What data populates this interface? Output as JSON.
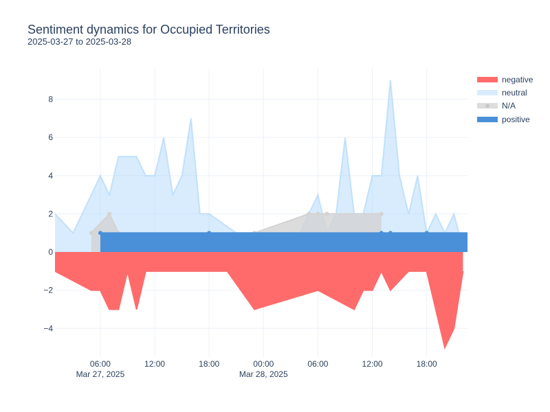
{
  "chart_data": {
    "type": "area",
    "title": "Sentiment dynamics for Occupied Territories",
    "subtitle": "2025-03-27 to 2025-03-28",
    "xlabel": "",
    "ylabel": "",
    "ylim": [
      -5.5,
      9.6
    ],
    "grid": true,
    "legend_position": "right",
    "x_tick_labels": [
      {
        "hour": 6,
        "label": "06:00",
        "date_label": "Mar 27, 2025"
      },
      {
        "hour": 12,
        "label": "12:00",
        "date_label": ""
      },
      {
        "hour": 18,
        "label": "18:00",
        "date_label": ""
      },
      {
        "hour": 24,
        "label": "00:00",
        "date_label": "Mar 28, 2025"
      },
      {
        "hour": 30,
        "label": "06:00",
        "date_label": ""
      },
      {
        "hour": 36,
        "label": "12:00",
        "date_label": ""
      },
      {
        "hour": 42,
        "label": "18:00",
        "date_label": ""
      }
    ],
    "y_ticks": [
      -4,
      -2,
      0,
      2,
      4,
      6,
      8
    ],
    "y_tick_labels": [
      "−4",
      "−2",
      "0",
      "2",
      "4",
      "6",
      "8"
    ],
    "x_range_hours": [
      1,
      46.5
    ],
    "x_unit_note": "x values are hours counted from 2025-03-27 00:00",
    "series": [
      {
        "name": "negative",
        "color": "#ff6b6b",
        "fill_opacity": 1,
        "markers": false,
        "points": [
          [
            1,
            -1
          ],
          [
            5,
            -2
          ],
          [
            6,
            -2
          ],
          [
            7,
            -3
          ],
          [
            8,
            -3
          ],
          [
            9,
            -1
          ],
          [
            10,
            -3
          ],
          [
            11,
            -1
          ],
          [
            12,
            -1
          ],
          [
            13,
            -1
          ],
          [
            14,
            -1
          ],
          [
            15,
            -1
          ],
          [
            16,
            -1
          ],
          [
            17,
            -1
          ],
          [
            18,
            -1
          ],
          [
            19,
            -1
          ],
          [
            20,
            -1
          ],
          [
            23,
            -3
          ],
          [
            30,
            -2
          ],
          [
            34,
            -3
          ],
          [
            35,
            -2
          ],
          [
            36,
            -2
          ],
          [
            37,
            -1
          ],
          [
            38,
            -2
          ],
          [
            40,
            -1
          ],
          [
            41,
            -1
          ],
          [
            42,
            -1
          ],
          [
            44,
            -5
          ],
          [
            45,
            -4
          ],
          [
            46,
            -1
          ]
        ]
      },
      {
        "name": "neutral",
        "color": "#a9d4fb",
        "fill_opacity": 0.45,
        "markers": false,
        "points": [
          [
            1,
            2
          ],
          [
            3,
            1
          ],
          [
            6,
            4
          ],
          [
            7,
            3
          ],
          [
            8,
            5
          ],
          [
            9,
            5
          ],
          [
            10,
            5
          ],
          [
            11,
            4
          ],
          [
            12,
            4
          ],
          [
            13,
            6
          ],
          [
            14,
            3
          ],
          [
            15,
            4
          ],
          [
            16,
            7
          ],
          [
            17,
            2
          ],
          [
            18,
            2
          ],
          [
            21,
            1
          ],
          [
            23,
            0.5
          ],
          [
            28,
            1
          ],
          [
            29,
            2
          ],
          [
            30,
            3
          ],
          [
            31,
            1
          ],
          [
            32,
            2
          ],
          [
            33,
            6
          ],
          [
            34,
            2
          ],
          [
            35,
            2
          ],
          [
            36,
            4
          ],
          [
            37,
            4
          ],
          [
            38,
            9
          ],
          [
            39,
            4
          ],
          [
            40,
            2
          ],
          [
            41,
            4
          ],
          [
            42,
            1
          ],
          [
            43,
            2
          ],
          [
            44,
            1
          ],
          [
            45,
            2
          ],
          [
            46,
            0.2
          ]
        ]
      },
      {
        "name": "N/A",
        "color": "#d3d3d3",
        "fill_opacity": 0.8,
        "markers": true,
        "points": [
          [
            5,
            1
          ],
          [
            7,
            2
          ],
          [
            8,
            1
          ],
          [
            23,
            1
          ],
          [
            29,
            2
          ],
          [
            30,
            2
          ],
          [
            31,
            2
          ],
          [
            37,
            2
          ]
        ]
      },
      {
        "name": "positive",
        "color": "#4a90d9",
        "fill_opacity": 1,
        "markers": true,
        "points": [
          [
            6,
            1
          ],
          [
            18,
            1
          ],
          [
            37,
            1
          ],
          [
            38,
            1
          ],
          [
            42,
            1
          ],
          [
            47,
            1
          ]
        ]
      }
    ],
    "legend_order": [
      "negative",
      "neutral",
      "N/A",
      "positive"
    ]
  }
}
